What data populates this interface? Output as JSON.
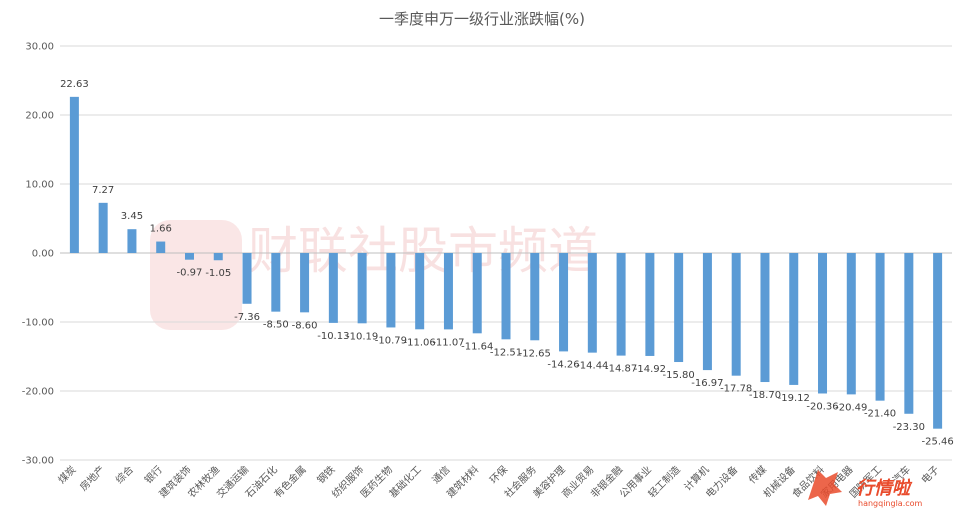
{
  "watermark": {
    "text": "财联社股市频道",
    "logo_text": "行情啦",
    "logo_url": "hangqingla.com"
  },
  "chart_data": {
    "type": "bar",
    "title": "一季度申万一级行业涨跌幅(%)",
    "xlabel": "",
    "ylabel": "",
    "ylim": [
      -30,
      30
    ],
    "yticks": [
      "30.00",
      "20.00",
      "10.00",
      "0.00",
      "-10.00",
      "-20.00",
      "-30.00"
    ],
    "grid": true,
    "bar_color": "#5b9bd5",
    "categories": [
      "煤炭",
      "房地产",
      "综合",
      "银行",
      "建筑装饰",
      "农林牧渔",
      "交通运输",
      "石油石化",
      "有色金属",
      "钢铁",
      "纺织服饰",
      "医药生物",
      "基础化工",
      "通信",
      "建筑材料",
      "环保",
      "社会服务",
      "美容护理",
      "商业贸易",
      "非银金融",
      "公用事业",
      "轻工制造",
      "计算机",
      "电力设备",
      "传媒",
      "机械设备",
      "食品饮料",
      "家用电器",
      "国防军工",
      "汽车",
      "电子"
    ],
    "values": [
      22.63,
      7.27,
      3.45,
      1.66,
      -0.97,
      -1.05,
      -7.36,
      -8.5,
      -8.6,
      -10.13,
      -10.19,
      -10.79,
      -11.06,
      -11.07,
      -11.64,
      -12.51,
      -12.65,
      -14.26,
      -14.44,
      -14.87,
      -14.92,
      -15.8,
      -16.97,
      -17.78,
      -18.7,
      -19.12,
      -20.36,
      -20.49,
      -21.4,
      -23.3,
      -25.46
    ],
    "value_labels": [
      "22.63",
      "7.27",
      "3.45",
      "1.66",
      "-0.97",
      "-1.05",
      "-7.36",
      "-8.50",
      "-8.60",
      "-10.13",
      "-10.19",
      "-10.79",
      "-11.06",
      "-11.07",
      "-11.64",
      "-12.51",
      "-12.65",
      "-14.26",
      "-14.44",
      "-14.87",
      "-14.92",
      "-15.80",
      "-16.97",
      "-17.78",
      "-18.70",
      "-19.12",
      "-20.36",
      "-20.49",
      "-21.40",
      "-23.30",
      "-25.46"
    ]
  }
}
